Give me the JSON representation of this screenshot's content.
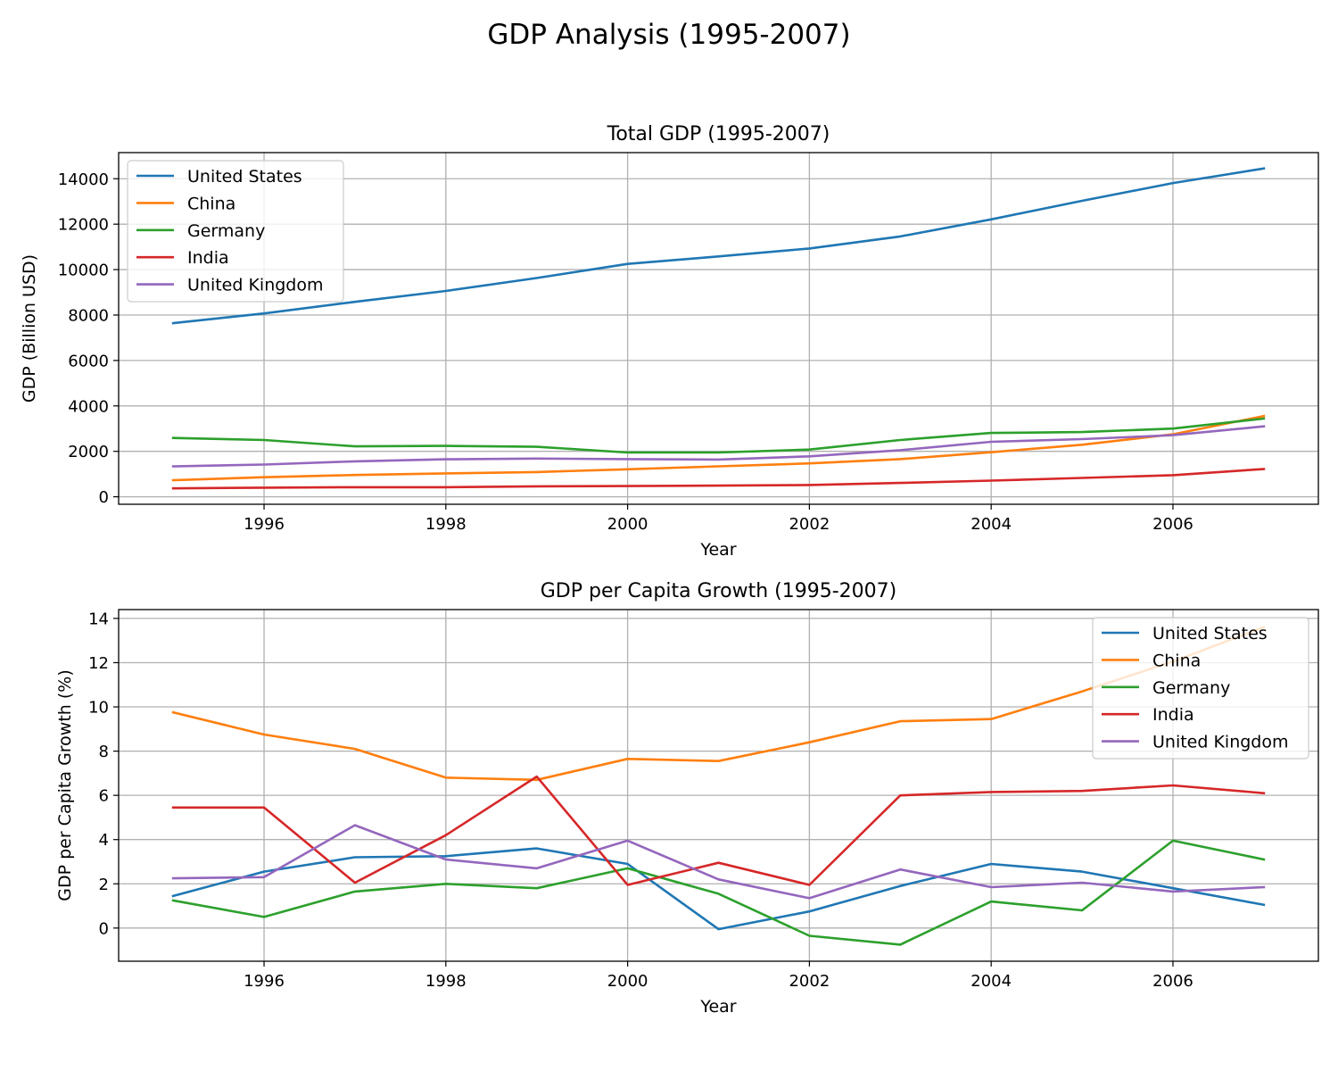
{
  "figure": {
    "title": "GDP Analysis (1995-2007)"
  },
  "chart_data": [
    {
      "type": "line",
      "title": "Total GDP (1995-2007)",
      "xlabel": "Year",
      "ylabel": "GDP (Billion USD)",
      "xlim": [
        1994.4,
        2007.6
      ],
      "ylim": [
        -330,
        15150
      ],
      "xticks": [
        1996,
        1998,
        2000,
        2002,
        2004,
        2006
      ],
      "yticks": [
        0,
        2000,
        4000,
        6000,
        8000,
        10000,
        12000,
        14000
      ],
      "grid": true,
      "legend_position": "upper-left",
      "x": [
        1995,
        1996,
        1997,
        1998,
        1999,
        2000,
        2001,
        2002,
        2003,
        2004,
        2005,
        2006,
        2007
      ],
      "series": [
        {
          "name": "United States",
          "color": "#1f77b4",
          "values": [
            7640,
            8070,
            8580,
            9060,
            9630,
            10250,
            10580,
            10930,
            11460,
            12210,
            13030,
            13810,
            14450
          ]
        },
        {
          "name": "China",
          "color": "#ff7f0e",
          "values": [
            730,
            860,
            960,
            1030,
            1090,
            1210,
            1340,
            1470,
            1660,
            1960,
            2290,
            2750,
            3550
          ]
        },
        {
          "name": "Germany",
          "color": "#2ca02c",
          "values": [
            2590,
            2500,
            2220,
            2240,
            2200,
            1950,
            1950,
            2080,
            2500,
            2810,
            2850,
            3000,
            3440
          ]
        },
        {
          "name": "India",
          "color": "#d62728",
          "values": [
            370,
            400,
            420,
            420,
            460,
            470,
            490,
            520,
            610,
            710,
            830,
            950,
            1220
          ]
        },
        {
          "name": "United Kingdom",
          "color": "#9467bd",
          "values": [
            1340,
            1420,
            1560,
            1650,
            1680,
            1660,
            1640,
            1780,
            2050,
            2420,
            2540,
            2710,
            3100
          ]
        }
      ]
    },
    {
      "type": "line",
      "title": "GDP per Capita Growth (1995-2007)",
      "xlabel": "Year",
      "ylabel": "GDP per Capita Growth (%)",
      "xlim": [
        1994.4,
        2007.6
      ],
      "ylim": [
        -1.5,
        14.4
      ],
      "xticks": [
        1996,
        1998,
        2000,
        2002,
        2004,
        2006
      ],
      "yticks": [
        0,
        2,
        4,
        6,
        8,
        10,
        12,
        14
      ],
      "grid": true,
      "legend_position": "upper-right",
      "x": [
        1995,
        1996,
        1997,
        1998,
        1999,
        2000,
        2001,
        2002,
        2003,
        2004,
        2005,
        2006,
        2007
      ],
      "series": [
        {
          "name": "United States",
          "color": "#1f77b4",
          "values": [
            1.45,
            2.55,
            3.2,
            3.25,
            3.6,
            2.9,
            -0.05,
            0.75,
            1.9,
            2.9,
            2.55,
            1.8,
            1.05
          ]
        },
        {
          "name": "China",
          "color": "#ff7f0e",
          "values": [
            9.75,
            8.75,
            8.1,
            6.8,
            6.7,
            7.65,
            7.55,
            8.4,
            9.35,
            9.45,
            10.7,
            12.05,
            13.6
          ]
        },
        {
          "name": "Germany",
          "color": "#2ca02c",
          "values": [
            1.25,
            0.5,
            1.65,
            2.0,
            1.8,
            2.7,
            1.55,
            -0.35,
            -0.75,
            1.2,
            0.8,
            3.95,
            3.1
          ]
        },
        {
          "name": "India",
          "color": "#d62728",
          "values": [
            5.45,
            5.45,
            2.05,
            4.2,
            6.85,
            1.95,
            2.95,
            1.95,
            6.0,
            6.15,
            6.2,
            6.45,
            6.1
          ]
        },
        {
          "name": "United Kingdom",
          "color": "#9467bd",
          "values": [
            2.25,
            2.3,
            4.65,
            3.1,
            2.7,
            3.95,
            2.2,
            1.35,
            2.65,
            1.85,
            2.05,
            1.65,
            1.85
          ]
        }
      ]
    }
  ]
}
